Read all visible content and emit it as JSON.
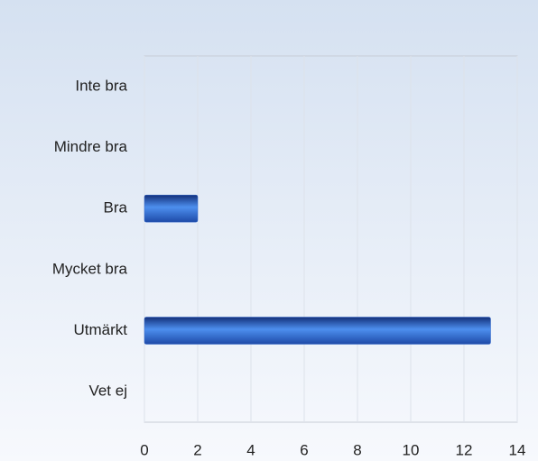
{
  "chart_data": {
    "type": "bar",
    "orientation": "horizontal",
    "categories": [
      "Inte bra",
      "Mindre bra",
      "Bra",
      "Mycket bra",
      "Utmärkt",
      "Vet ej"
    ],
    "values": [
      0,
      0,
      2,
      0,
      13,
      0
    ],
    "color": "#2f64c8",
    "xlim": [
      0,
      14
    ],
    "xticks": [
      0,
      2,
      4,
      6,
      8,
      10,
      12,
      14
    ],
    "grid": true
  }
}
